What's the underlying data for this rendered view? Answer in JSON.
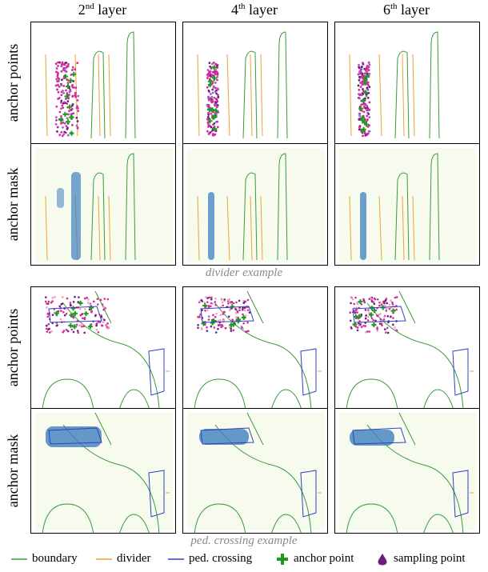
{
  "columns": [
    {
      "base": "2",
      "sup": "nd",
      "rest": " layer"
    },
    {
      "base": "4",
      "sup": "th",
      "rest": " layer"
    },
    {
      "base": "6",
      "sup": "th",
      "rest": " layer"
    }
  ],
  "row_labels": {
    "top_points": "anchor points",
    "top_mask": "anchor mask",
    "bottom_points": "anchor points",
    "bottom_mask": "anchor mask"
  },
  "captions": {
    "divider": "divider example",
    "ped": "ped. crossing example"
  },
  "legend": [
    {
      "label": "boundary",
      "kind": "line",
      "color": "#3a9a3a"
    },
    {
      "label": "divider",
      "kind": "line",
      "color": "#f0a030"
    },
    {
      "label": "ped. crossing",
      "kind": "line",
      "color": "#3040c0"
    },
    {
      "label": "anchor point",
      "kind": "cross",
      "color": "#1f9a1f"
    },
    {
      "label": "sampling point",
      "kind": "drop",
      "color": "#6a2080"
    }
  ],
  "colors": {
    "boundary": "#3a9a3a",
    "divider": "#f0a030",
    "ped_crossing": "#3040c0",
    "anchor_point": "#1f9a1f",
    "sampling_point_a": "#d42a9a",
    "sampling_point_b": "#6a2080",
    "mask_bg": "#f6fbee",
    "mask_blob": "#3f7fbf"
  }
}
